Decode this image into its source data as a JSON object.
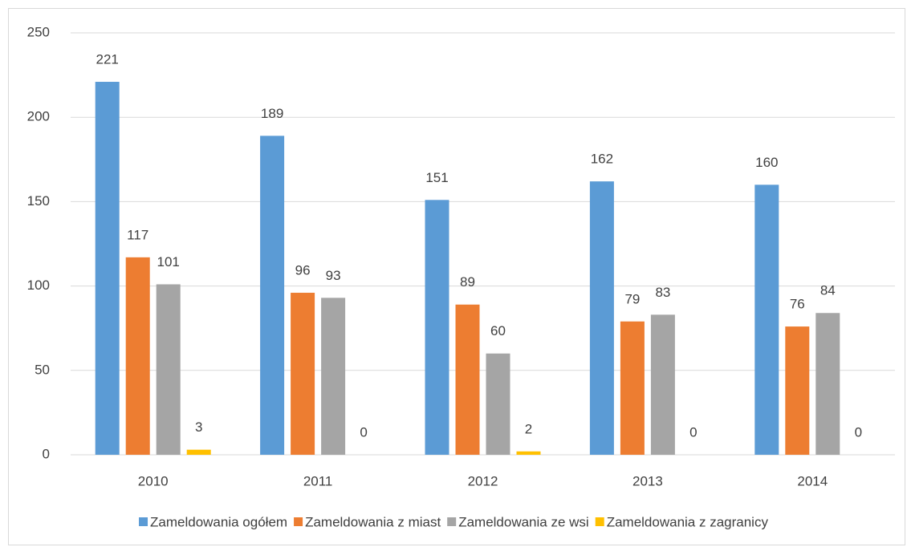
{
  "chart_data": {
    "type": "bar",
    "categories": [
      "2010",
      "2011",
      "2012",
      "2013",
      "2014"
    ],
    "series": [
      {
        "name": "Zameldowania ogółem",
        "color": "#5b9bd5",
        "values": [
          221,
          189,
          151,
          162,
          160
        ]
      },
      {
        "name": "Zameldowania z miast",
        "color": "#ed7d31",
        "values": [
          117,
          96,
          89,
          79,
          76
        ]
      },
      {
        "name": "Zameldowania ze wsi",
        "color": "#a5a5a5",
        "values": [
          101,
          93,
          60,
          83,
          84
        ]
      },
      {
        "name": "Zameldowania z zagranicy",
        "color": "#ffc000",
        "values": [
          3,
          0,
          2,
          0,
          0
        ]
      }
    ],
    "ylim": [
      0,
      250
    ],
    "yticks": [
      0,
      50,
      100,
      150,
      200,
      250
    ],
    "grid": true,
    "legend": "bottom"
  }
}
